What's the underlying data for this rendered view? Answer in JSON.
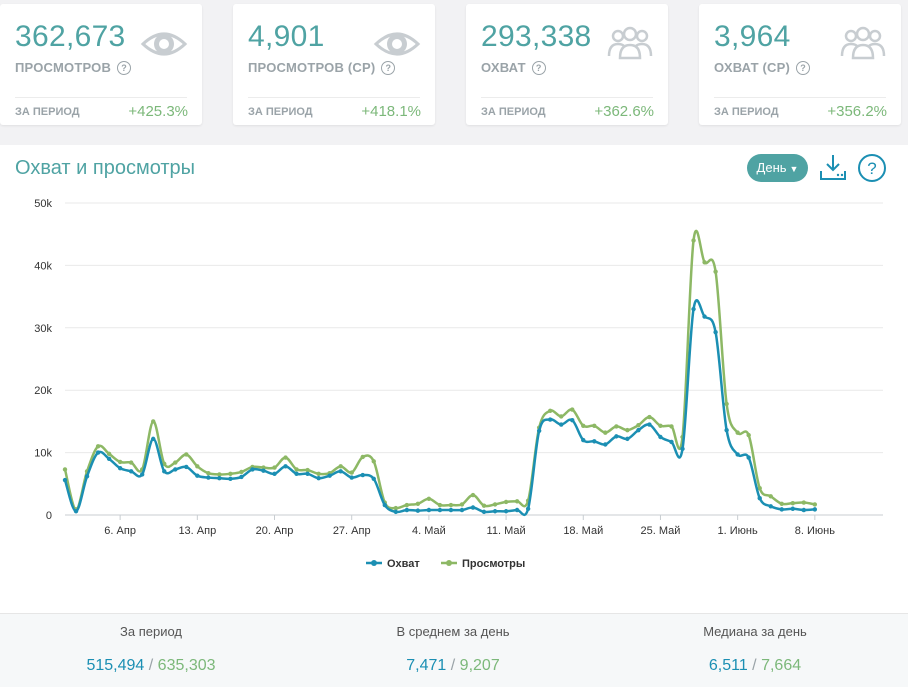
{
  "cards": [
    {
      "value": "362,673",
      "label": "ПРОСМОТРОВ",
      "period": "ЗА ПЕРИОД",
      "change": "+425.3%",
      "icon": "eye-icon"
    },
    {
      "value": "4,901",
      "label": "ПРОСМОТРОВ (СР)",
      "period": "ЗА ПЕРИОД",
      "change": "+418.1%",
      "icon": "eye-icon"
    },
    {
      "value": "293,338",
      "label": "ОХВАТ",
      "period": "ЗА ПЕРИОД",
      "change": "+362.6%",
      "icon": "users-icon"
    },
    {
      "value": "3,964",
      "label": "ОХВАТ (СР)",
      "period": "ЗА ПЕРИОД",
      "change": "+356.2%",
      "icon": "users-icon"
    }
  ],
  "panel": {
    "title": "Охват и просмотры",
    "period_button": "День",
    "help_symbol": "?",
    "question_symbol": "?"
  },
  "colors": {
    "accent": "#4fa3a3",
    "reach": "#1b8fb3",
    "views": "#8db865"
  },
  "chart_data": {
    "type": "line",
    "y_ticks": [
      "0",
      "10k",
      "20k",
      "30k",
      "40k",
      "50k"
    ],
    "y_tick_values": [
      0,
      10000,
      20000,
      30000,
      40000,
      50000
    ],
    "ylim": [
      0,
      50000
    ],
    "x_tick_labels": [
      "6. Апр",
      "13. Апр",
      "20. Апр",
      "27. Апр",
      "4. Май",
      "11. Май",
      "18. Май",
      "25. Май",
      "1. Июнь",
      "8. Июнь"
    ],
    "x_tick_days": [
      5,
      12,
      19,
      26,
      33,
      40,
      47,
      54,
      61,
      68
    ],
    "x_range_days": [
      0,
      74
    ],
    "x_start_note": "day index 0 corresponds to 1. Апр",
    "grid": true,
    "legend_position": "bottom",
    "series": [
      {
        "name": "Охват",
        "color": "#1b8fb3",
        "values": [
          5600,
          600,
          6200,
          10000,
          9000,
          7500,
          7000,
          6500,
          12200,
          7000,
          7300,
          7700,
          6300,
          6000,
          5900,
          5800,
          6100,
          7300,
          7100,
          6600,
          7800,
          6600,
          6600,
          5900,
          6300,
          7000,
          6000,
          6400,
          5800,
          1600,
          500,
          800,
          700,
          800,
          800,
          800,
          800,
          1200,
          500,
          600,
          600,
          800,
          1000,
          13500,
          15300,
          14500,
          15200,
          12000,
          11800,
          11300,
          12600,
          12200,
          13600,
          14500,
          12500,
          11700,
          10600,
          33000,
          31800,
          29300,
          13600,
          9700,
          9200,
          2700,
          1400,
          900,
          1000,
          800,
          900
        ]
      },
      {
        "name": "Просмотры",
        "color": "#8db865",
        "values": [
          7300,
          900,
          7000,
          11000,
          9800,
          8500,
          8400,
          7300,
          15000,
          8200,
          8400,
          9700,
          7800,
          6700,
          6500,
          6600,
          6900,
          7700,
          7600,
          7600,
          9200,
          7300,
          7200,
          6600,
          6700,
          7800,
          6800,
          9300,
          8600,
          2000,
          1100,
          1600,
          1800,
          2600,
          1600,
          1600,
          1700,
          3200,
          1500,
          1700,
          2100,
          2200,
          2300,
          14000,
          16700,
          15800,
          16900,
          14300,
          14300,
          13200,
          14200,
          13600,
          14400,
          15700,
          14300,
          14200,
          12500,
          44000,
          40500,
          39000,
          17800,
          13200,
          12800,
          4300,
          3000,
          1800,
          1900,
          2000,
          1700
        ]
      }
    ]
  },
  "footer": [
    {
      "label": "За период",
      "a": "515,494",
      "b": "635,303"
    },
    {
      "label": "В среднем за день",
      "a": "7,471",
      "b": "9,207"
    },
    {
      "label": "Медиана за день",
      "a": "6,511",
      "b": "7,664"
    }
  ],
  "footer_separator": "/"
}
